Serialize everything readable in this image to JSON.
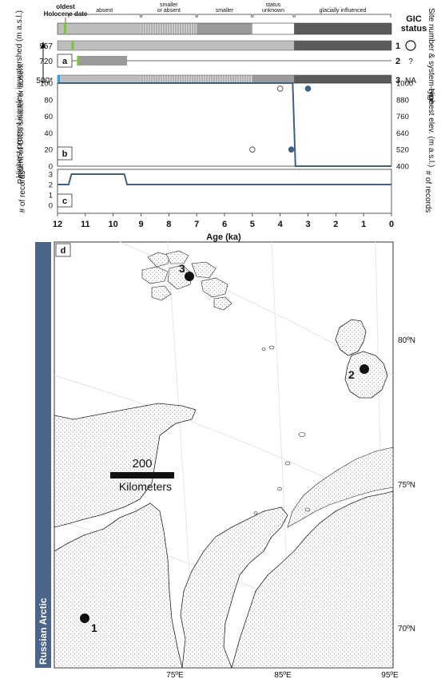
{
  "legend": {
    "oldest_label_1": "oldest",
    "oldest_label_2": "Holocene date",
    "status_labels": [
      "absent",
      "smaller or absent",
      "smaller",
      "status unknown",
      "glacially influenced"
    ],
    "gic_status_title": "GIC",
    "gic_status_title_2": "status"
  },
  "colors": {
    "absent": "#bdbdbd",
    "smaller_or_absent": "#c8c8c8",
    "smaller": "#9a9a9a",
    "unknown": "#ffffff",
    "glacial": "#5b5b5b",
    "green_marker": "#7dc242",
    "blue_marker": "#3aa0dc",
    "line": "#3f5f85",
    "sidebar": "#4a6588"
  },
  "panel_a": {
    "letter": "a",
    "ylabel": "Highest present ice elev. in watershed (m a.s.l.)",
    "right_label": "Site number & system-type",
    "rows": [
      {
        "elev": "957",
        "site": "1",
        "type": "○",
        "segments": [
          {
            "from": 12,
            "to": 11.5,
            "status": "absent"
          },
          {
            "from": 11.5,
            "to": 3.5,
            "status": "absent"
          },
          {
            "from": 3.5,
            "to": 0,
            "status": "glacial"
          }
        ],
        "oldest": 11.5
      },
      {
        "elev": "720",
        "site": "2",
        "type": "?",
        "segments": [
          {
            "from": 11.3,
            "to": 9.5,
            "status": "smaller"
          }
        ],
        "oldest": 11.3
      },
      {
        "elev": "500*",
        "site": "3",
        "type": "NA",
        "segments": [
          {
            "from": 12,
            "to": 9,
            "status": "absent"
          },
          {
            "from": 9,
            "to": 5,
            "status": "smaller_or_absent"
          },
          {
            "from": 5,
            "to": 3.5,
            "status": "smaller"
          },
          {
            "from": 3.5,
            "to": 0,
            "status": "glacial"
          }
        ],
        "oldest": 12
      }
    ]
  },
  "chart_data": [
    {
      "panel": "b",
      "type": "line",
      "ylabel": "Percent of GICs smaller or absent",
      "y2label": "Highest elev. (m a.s.l.)",
      "ylim": [
        0,
        100
      ],
      "yticks": [
        0,
        20,
        40,
        60,
        80,
        100
      ],
      "y2lim": [
        400,
        1000
      ],
      "y2ticks": [
        400,
        520,
        640,
        760,
        880,
        1000
      ],
      "xlim": [
        12,
        0
      ],
      "series": [
        {
          "x": [
            12,
            3.55,
            3.45,
            0
          ],
          "y": [
            100,
            100,
            0,
            0
          ]
        }
      ],
      "points": [
        {
          "x": 5.0,
          "elev": 520,
          "style": "open"
        },
        {
          "x": 4.0,
          "elev": 960,
          "style": "open"
        },
        {
          "x": 3.6,
          "elev": 520,
          "style": "filled"
        },
        {
          "x": 3.0,
          "elev": 960,
          "style": "filled"
        }
      ]
    },
    {
      "panel": "c",
      "type": "line",
      "ylabel": "# of records",
      "y2label": "# of records",
      "ylim": [
        0,
        3
      ],
      "yticks": [
        0,
        1,
        2,
        3
      ],
      "xlim": [
        12,
        0
      ],
      "xlabel": "Age (ka)",
      "xticks": [
        12,
        11,
        10,
        9,
        8,
        7,
        6,
        5,
        4,
        3,
        2,
        1,
        0
      ],
      "series": [
        {
          "x": [
            12,
            11.6,
            11.5,
            9.6,
            9.5,
            0
          ],
          "y": [
            2,
            2,
            3,
            3,
            2,
            2
          ]
        }
      ]
    }
  ],
  "map": {
    "letter": "d",
    "region": "Russian Arctic",
    "scale_value": "200",
    "scale_unit": "Kilometers",
    "lat_labels": [
      "80ºN",
      "75ºN",
      "70ºN"
    ],
    "lon_labels": [
      "75ºE",
      "85ºE",
      "95ºE"
    ],
    "sites": [
      {
        "label": "1"
      },
      {
        "label": "2"
      },
      {
        "label": "3"
      }
    ]
  }
}
